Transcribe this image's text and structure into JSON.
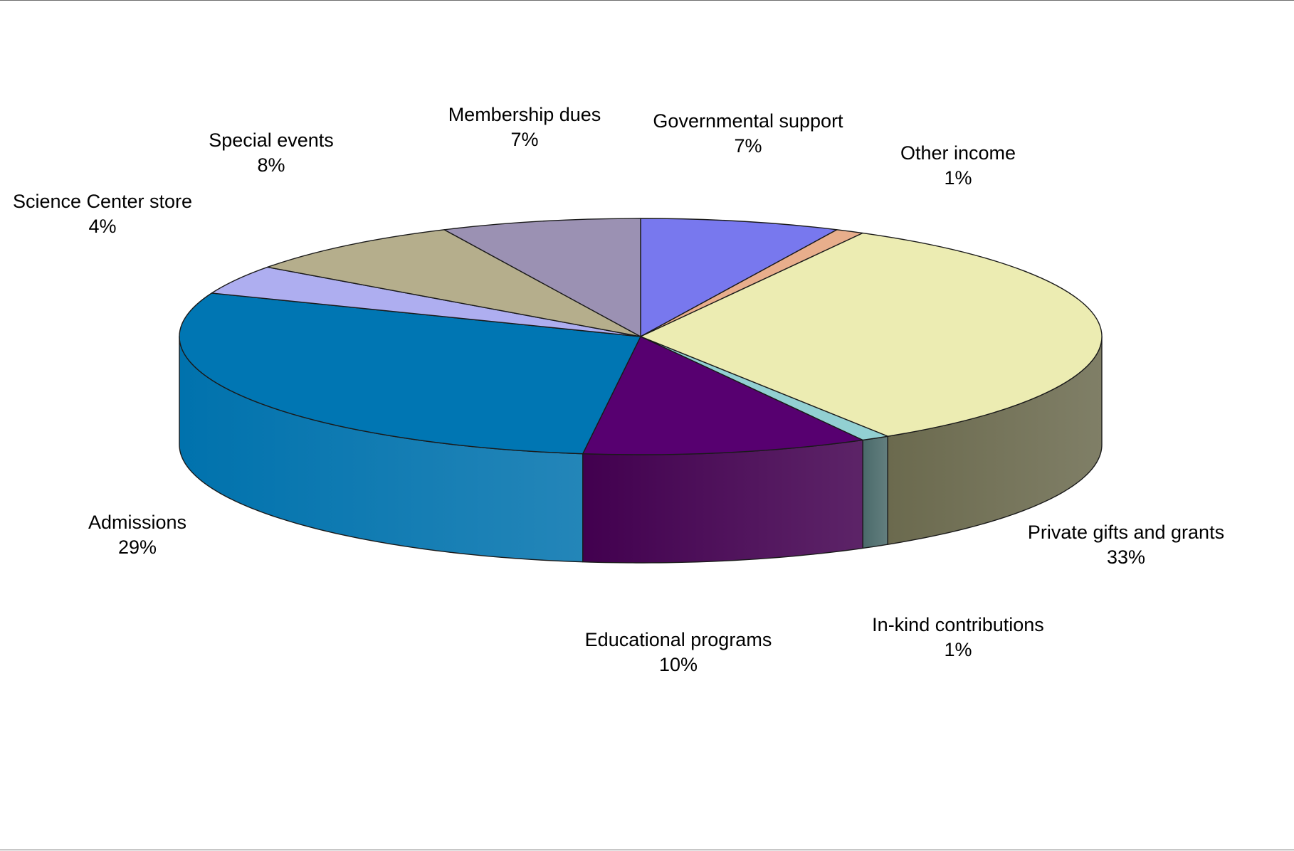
{
  "chart_data": {
    "type": "pie",
    "style": "3d-exploded-none",
    "title": "",
    "slices": [
      {
        "label": "Governmental support",
        "value": 7,
        "display": "7%",
        "color": "#7878ee",
        "side_color": "#5c5cc8"
      },
      {
        "label": "Other income",
        "value": 1,
        "display": "1%",
        "color": "#e8ae8c",
        "side_color": "#b98a70"
      },
      {
        "label": "Private gifts and grants",
        "value": 33,
        "display": "33%",
        "color": "#ececb2",
        "side_color": "#6b6a4e"
      },
      {
        "label": "In-kind contributions",
        "value": 1,
        "display": "1%",
        "color": "#92d0d2",
        "side_color": "#4a6a6a"
      },
      {
        "label": "Educational programs",
        "value": 10,
        "display": "10%",
        "color": "#570070",
        "side_color": "#42004f"
      },
      {
        "label": "Admissions",
        "value": 29,
        "display": "29%",
        "color": "#0076b3",
        "side_color": "#0072ad"
      },
      {
        "label": "Science Center store",
        "value": 4,
        "display": "4%",
        "color": "#aeaef0",
        "side_color": "#8c8cc8"
      },
      {
        "label": "Special events",
        "value": 8,
        "display": "8%",
        "color": "#b5ae8c",
        "side_color": "#8f896e"
      },
      {
        "label": "Membership dues",
        "value": 7,
        "display": "7%",
        "color": "#9b91b3",
        "side_color": "#7a7290"
      }
    ],
    "legend": "none",
    "labels": "outside"
  }
}
